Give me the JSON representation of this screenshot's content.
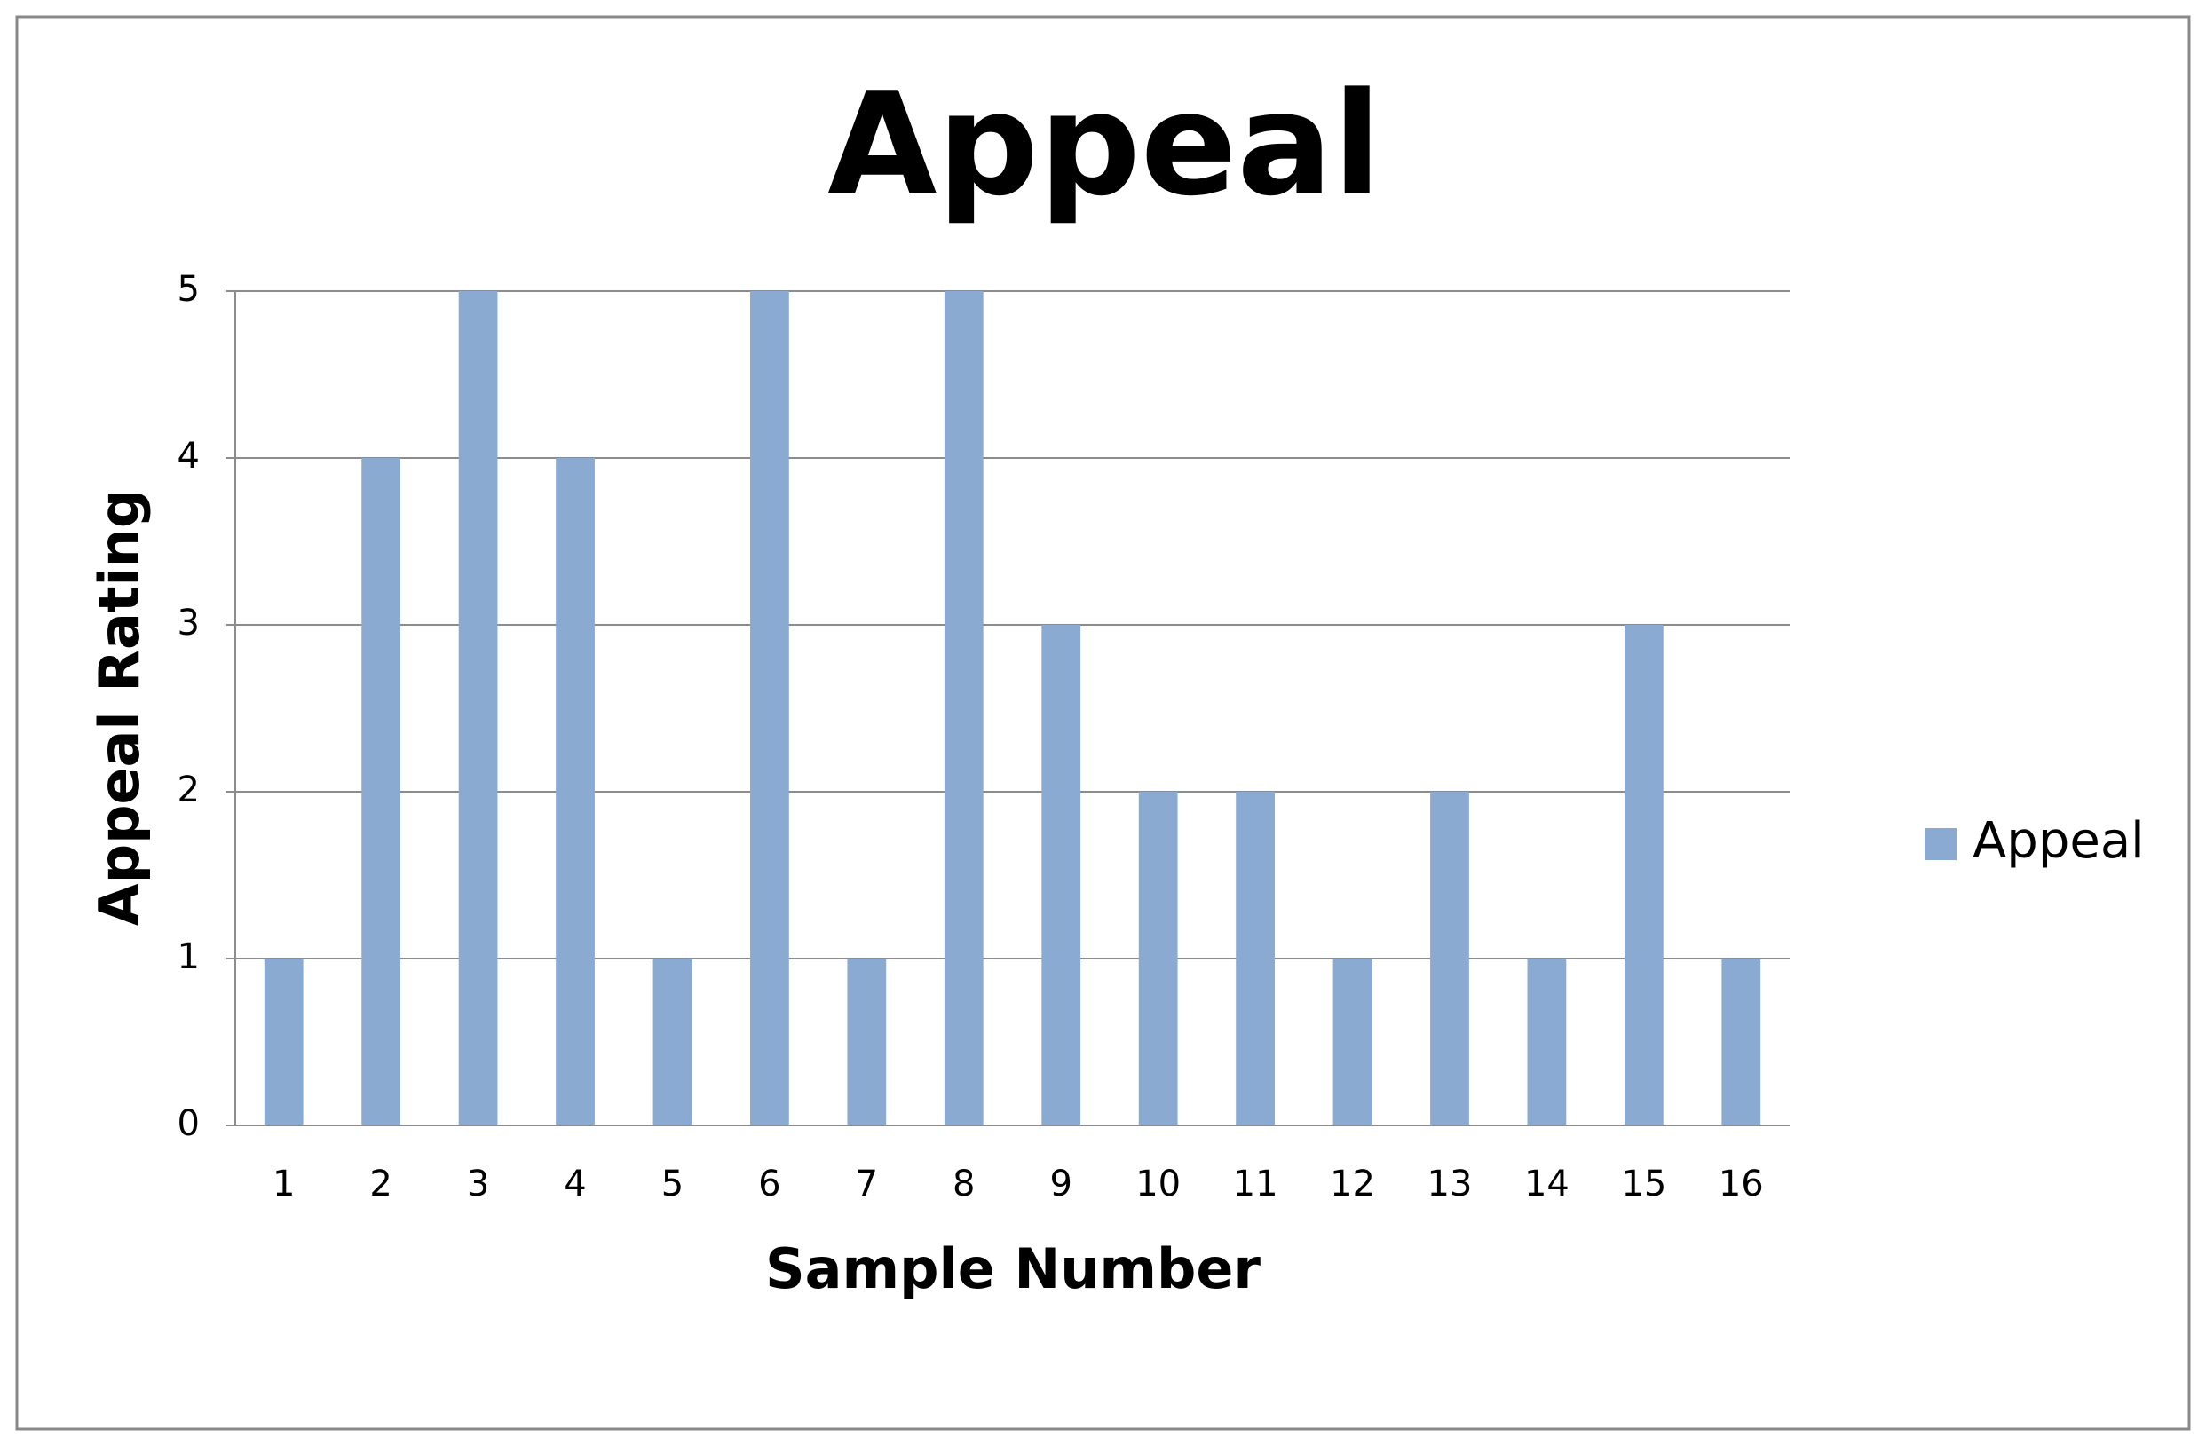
{
  "chart_data": {
    "type": "bar",
    "title": "Appeal",
    "x_label": "Sample Number",
    "y_label": "Appeal Rating",
    "categories": [
      "1",
      "2",
      "3",
      "4",
      "5",
      "6",
      "7",
      "8",
      "9",
      "10",
      "11",
      "12",
      "13",
      "14",
      "15",
      "16"
    ],
    "series": [
      {
        "name": "Appeal",
        "color": "#8aaad2",
        "values": [
          1,
          4,
          5,
          4,
          1,
          5,
          1,
          5,
          3,
          2,
          2,
          1,
          2,
          1,
          3,
          1
        ]
      }
    ],
    "ylim": [
      0,
      5
    ],
    "yticks": [
      0,
      1,
      2,
      3,
      4,
      5
    ],
    "grid": true,
    "legend": "right"
  }
}
